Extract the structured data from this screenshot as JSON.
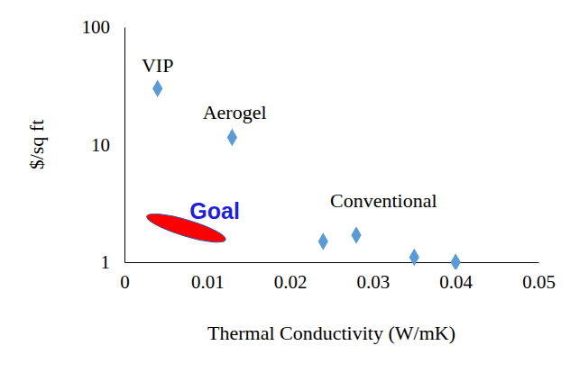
{
  "chart_data": {
    "type": "scatter",
    "log": "y",
    "grid": false,
    "x_label": "Thermal Conductivity (W/mK)",
    "y_label": "$/sq ft",
    "x": [
      0.004,
      0.013,
      0.024,
      0.028,
      0.035,
      0.04
    ],
    "y": [
      30,
      11.5,
      1.5,
      1.7,
      1.1,
      1.0
    ],
    "color": "#5b9bd5",
    "marker": "diamond",
    "xlim": [
      0,
      0.05
    ],
    "xticks": [
      0,
      0.01,
      0.02,
      0.03,
      0.04,
      0.05
    ],
    "ylim": [
      1,
      100
    ],
    "yticks": [
      1,
      10,
      100
    ],
    "annotations": [
      {
        "text": "VIP",
        "x": 0.004,
        "y": 41.4
      },
      {
        "text": "Aerogel",
        "x": 0.0133,
        "y": 16.5
      },
      {
        "text": "Conventional",
        "x": 0.0313,
        "y": 2.93
      },
      {
        "text": "Goal",
        "x": 0.0109,
        "y": 2.33,
        "color": "#1f1fd6"
      }
    ],
    "regions": [
      {
        "x": [
          0.0027,
          0.0122
        ],
        "y": [
          2.46,
          1.55
        ],
        "color": "#ff0000"
      }
    ]
  }
}
